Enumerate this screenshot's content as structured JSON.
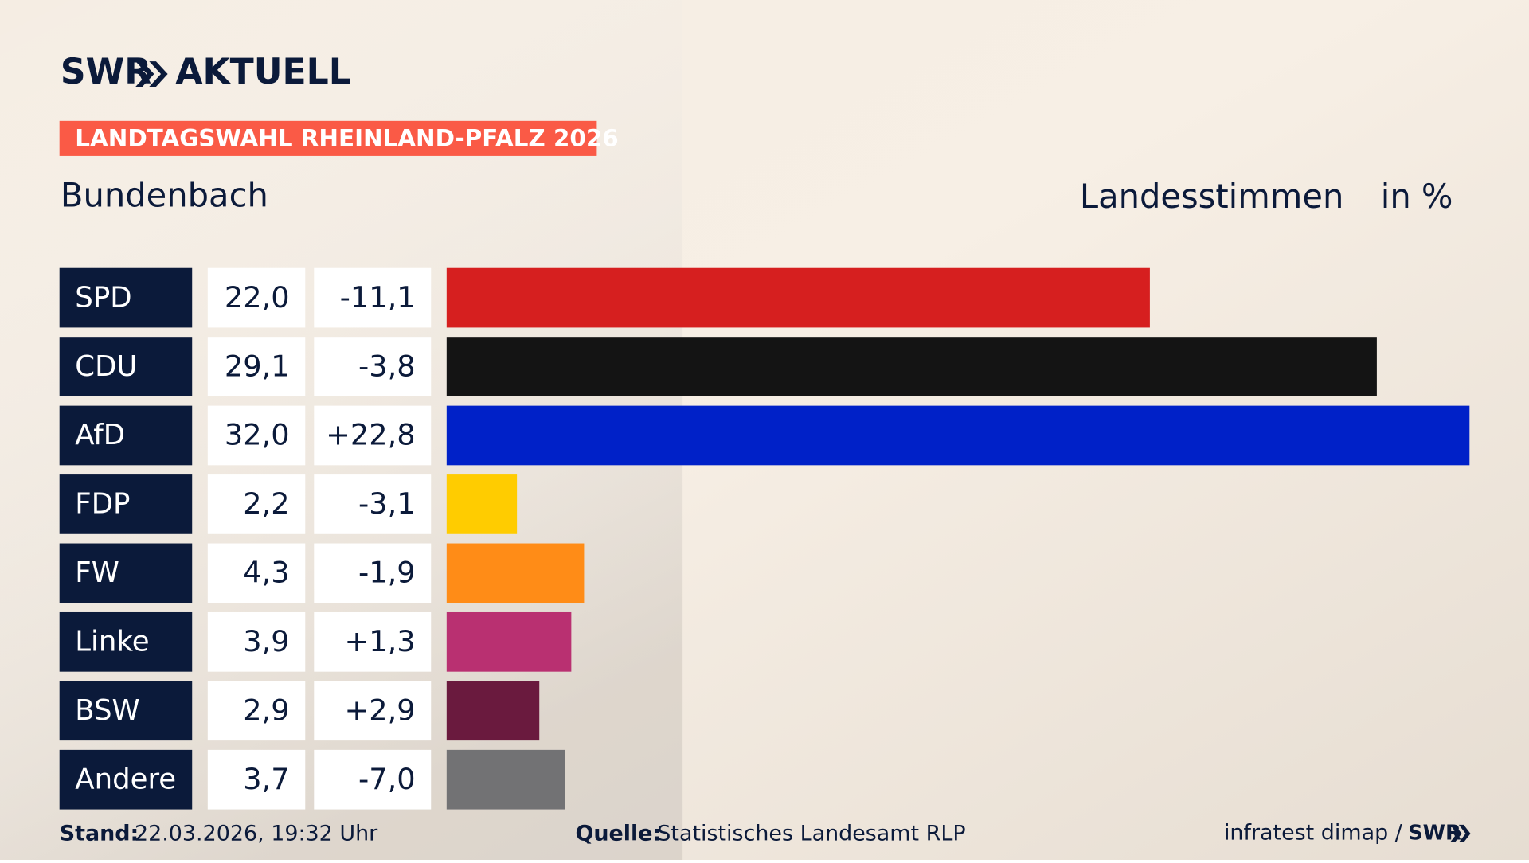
{
  "logo": "SWR",
  "logo_suffix": "AKTUELL",
  "chart_data": {
    "type": "bar",
    "badge": "LANDTAGSWAHL RHEINLAND-PFALZ 2026",
    "title": "Bundenbach",
    "subtitle": "Landesstimmen",
    "unit": "in %",
    "categories": [
      "SPD",
      "CDU",
      "AfD",
      "FDP",
      "FW",
      "Linke",
      "BSW",
      "Andere"
    ],
    "values": [
      22.0,
      29.1,
      32.0,
      2.2,
      4.3,
      3.9,
      2.9,
      3.7
    ],
    "value_labels": [
      "22,0",
      "29,1",
      "32,0",
      "2,2",
      "4,3",
      "3,9",
      "2,9",
      "3,7"
    ],
    "changes": [
      -11.1,
      -3.8,
      22.8,
      -3.1,
      -1.9,
      1.3,
      2.9,
      -7.0
    ],
    "change_labels": [
      "-11,1",
      "-3,8",
      "+22,8",
      "-3,1",
      "-1,9",
      "+1,3",
      "+2,9",
      "-7,0"
    ],
    "colors": [
      "#d61f1f",
      "#141414",
      "#0021c8",
      "#ffcc00",
      "#ff8c17",
      "#b93071",
      "#6a1a3e",
      "#727274"
    ]
  },
  "footer": {
    "stand_label": "Stand:",
    "stand": "22.03.2026, 19:32 Uhr",
    "source_label": "Quelle:",
    "source": "Statistisches Landesamt RLP",
    "credit": "infratest dimap /",
    "credit_logo": "SWR"
  }
}
